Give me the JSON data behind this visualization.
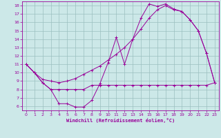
{
  "xlabel": "Windchill (Refroidissement éolien,°C)",
  "bg_color": "#cce8e8",
  "line_color": "#990099",
  "grid_color": "#9bbfbf",
  "xlim": [
    -0.5,
    23.5
  ],
  "ylim": [
    5.5,
    18.5
  ],
  "xticks": [
    0,
    1,
    2,
    3,
    4,
    5,
    6,
    7,
    8,
    9,
    10,
    11,
    12,
    13,
    14,
    15,
    16,
    17,
    18,
    19,
    20,
    21,
    22,
    23
  ],
  "yticks": [
    6,
    7,
    8,
    9,
    10,
    11,
    12,
    13,
    14,
    15,
    16,
    17,
    18
  ],
  "line1_x": [
    0,
    1,
    2,
    3,
    4,
    5,
    6,
    7,
    8,
    9,
    10,
    11,
    12,
    13,
    14,
    15,
    16,
    17,
    18,
    19,
    20,
    21,
    22,
    23
  ],
  "line1_y": [
    11.0,
    10.0,
    8.8,
    8.0,
    6.3,
    6.3,
    5.9,
    5.9,
    6.7,
    8.7,
    11.2,
    14.2,
    11.0,
    14.0,
    16.5,
    18.2,
    17.9,
    18.2,
    17.6,
    17.3,
    16.3,
    15.0,
    12.3,
    8.8
  ],
  "line2_x": [
    0,
    1,
    2,
    3,
    4,
    5,
    6,
    7,
    8,
    9,
    10,
    11,
    12,
    13,
    14,
    15,
    16,
    17,
    18,
    19,
    20,
    21,
    22,
    23
  ],
  "line2_y": [
    11.0,
    10.0,
    8.8,
    8.0,
    8.0,
    8.0,
    8.0,
    8.0,
    8.5,
    8.5,
    8.5,
    8.5,
    8.5,
    8.5,
    8.5,
    8.5,
    8.5,
    8.5,
    8.5,
    8.5,
    8.5,
    8.5,
    8.5,
    8.8
  ],
  "line3_x": [
    0,
    1,
    2,
    3,
    4,
    5,
    6,
    7,
    8,
    9,
    10,
    11,
    12,
    13,
    14,
    15,
    16,
    17,
    18,
    19,
    20,
    21,
    22,
    23
  ],
  "line3_y": [
    11.0,
    10.0,
    9.2,
    9.0,
    8.8,
    9.0,
    9.3,
    9.8,
    10.3,
    10.8,
    11.5,
    12.2,
    13.0,
    14.0,
    15.2,
    16.5,
    17.5,
    18.0,
    17.5,
    17.3,
    16.3,
    15.0,
    12.3,
    8.8
  ]
}
